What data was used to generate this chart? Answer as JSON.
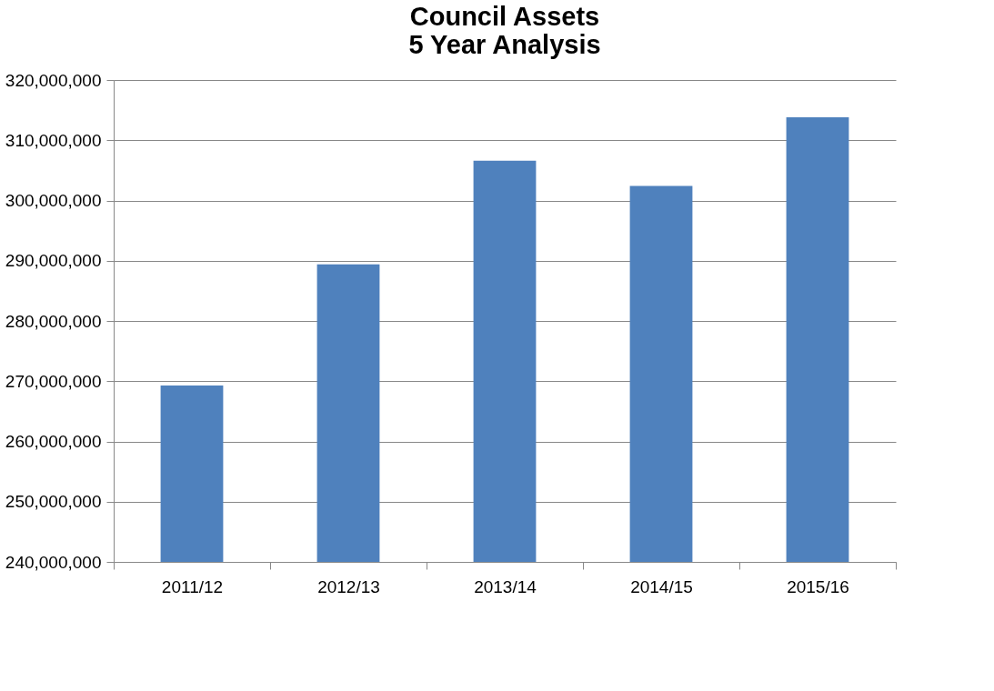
{
  "chart_data": {
    "type": "bar",
    "title": "Council Assets\n5 Year Analysis",
    "categories": [
      "2011/12",
      "2012/13",
      "2013/14",
      "2014/15",
      "2015/16"
    ],
    "series": [
      {
        "color": "#4f81bd",
        "values": [
          269300000,
          289400000,
          306600000,
          302400000,
          313800000
        ]
      }
    ],
    "ylim": [
      240000000,
      320000000
    ],
    "yticks": [
      {
        "value": 240000000,
        "label": "240,000,000"
      },
      {
        "value": 250000000,
        "label": "250,000,000"
      },
      {
        "value": 260000000,
        "label": "260,000,000"
      },
      {
        "value": 270000000,
        "label": "270,000,000"
      },
      {
        "value": 280000000,
        "label": "280,000,000"
      },
      {
        "value": 290000000,
        "label": "290,000,000"
      },
      {
        "value": 300000000,
        "label": "300,000,000"
      },
      {
        "value": 310000000,
        "label": "310,000,000"
      },
      {
        "value": 320000000,
        "label": "320,000,000"
      }
    ],
    "grid": "y",
    "legend": false
  }
}
